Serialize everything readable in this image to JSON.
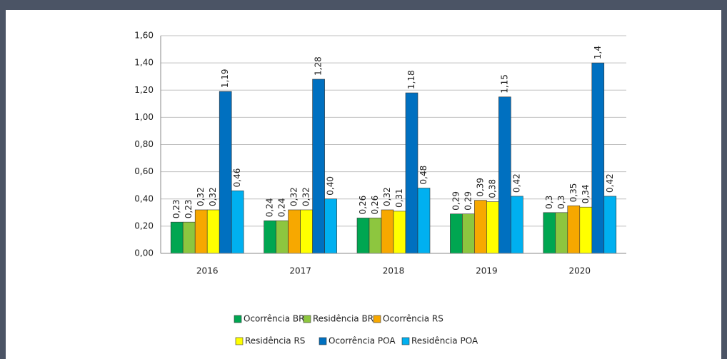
{
  "chart_data": {
    "type": "bar",
    "categories": [
      "2016",
      "2017",
      "2018",
      "2019",
      "2020"
    ],
    "series": [
      {
        "name": "Ocorrência BR",
        "color": "#00a651",
        "values": [
          0.23,
          0.24,
          0.26,
          0.29,
          0.3
        ],
        "value_labels": [
          "0,23",
          "0,24",
          "0,26",
          "0,29",
          "0,3"
        ]
      },
      {
        "name": "Residência BR",
        "color": "#8dc63f",
        "values": [
          0.23,
          0.24,
          0.26,
          0.29,
          0.3
        ],
        "value_labels": [
          "0,23",
          "0,24",
          "0,26",
          "0,29",
          "0,3"
        ]
      },
      {
        "name": "Ocorrência RS",
        "color": "#f7a800",
        "values": [
          0.32,
          0.32,
          0.32,
          0.39,
          0.35
        ],
        "value_labels": [
          "0,32",
          "0,32",
          "0,32",
          "0,39",
          "0,35"
        ]
      },
      {
        "name": "Residência RS",
        "color": "#ffff00",
        "values": [
          0.32,
          0.32,
          0.31,
          0.38,
          0.34
        ],
        "value_labels": [
          "0,32",
          "0,32",
          "0,31",
          "0,38",
          "0,34"
        ]
      },
      {
        "name": "Ocorrência POA",
        "color": "#0070c0",
        "values": [
          1.19,
          1.28,
          1.18,
          1.15,
          1.4
        ],
        "value_labels": [
          "1,19",
          "1,28",
          "1,18",
          "1,15",
          "1,4"
        ]
      },
      {
        "name": "Residência POA",
        "color": "#00b0f0",
        "values": [
          0.46,
          0.4,
          0.48,
          0.42,
          0.42
        ],
        "value_labels": [
          "0,46",
          "0,40",
          "0,48",
          "0,42",
          "0,42"
        ]
      }
    ],
    "ylim": [
      0,
      1.6
    ],
    "yticks": [
      {
        "value": 0,
        "label": "0,00"
      },
      {
        "value": 0.2,
        "label": "0,20"
      },
      {
        "value": 0.4,
        "label": "0,40"
      },
      {
        "value": 0.6,
        "label": "0,60"
      },
      {
        "value": 0.8,
        "label": "0,80"
      },
      {
        "value": 1.0,
        "label": "1,00"
      },
      {
        "value": 1.2,
        "label": "1,20"
      },
      {
        "value": 1.4,
        "label": "1,40"
      },
      {
        "value": 1.6,
        "label": "1,60"
      }
    ],
    "grid": true,
    "legend": "bottom"
  }
}
